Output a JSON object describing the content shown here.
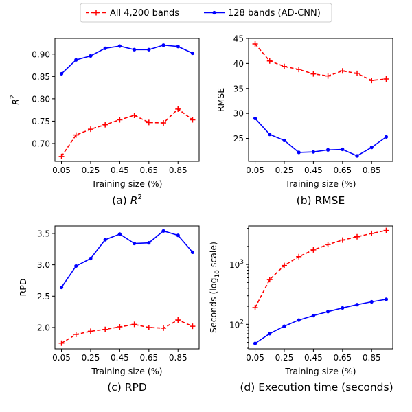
{
  "legend": {
    "items": [
      {
        "label": "All 4,200 bands",
        "color": "#ff0000",
        "style": "dashed",
        "marker": "plus"
      },
      {
        "label": "128 bands (AD-CNN)",
        "color": "#0000ff",
        "style": "solid",
        "marker": "dot"
      }
    ]
  },
  "chart_data": [
    {
      "type": "line",
      "caption": "(a) R²",
      "caption_main": "(a) R",
      "caption_sup": "2",
      "xlabel": "Training size (%)",
      "ylabel_main": "R",
      "ylabel_sup": "2",
      "x": [
        0.05,
        0.15,
        0.25,
        0.35,
        0.45,
        0.55,
        0.65,
        0.75,
        0.85,
        0.95
      ],
      "xticks": [
        0.05,
        0.25,
        0.45,
        0.65,
        0.85
      ],
      "xlim": [
        0.005,
        0.995
      ],
      "ylim": [
        0.66,
        0.935
      ],
      "yscale": "linear",
      "yticks": [
        0.7,
        0.75,
        0.8,
        0.85,
        0.9
      ],
      "yticklabels": [
        "0.70",
        "0.75",
        "0.80",
        "0.85",
        "0.90"
      ],
      "series": [
        {
          "name": "All 4,200 bands",
          "values": [
            0.671,
            0.719,
            0.732,
            0.742,
            0.753,
            0.763,
            0.747,
            0.746,
            0.777,
            0.753
          ]
        },
        {
          "name": "128 bands (AD-CNN)",
          "values": [
            0.856,
            0.887,
            0.896,
            0.913,
            0.918,
            0.91,
            0.91,
            0.92,
            0.917,
            0.902
          ]
        }
      ]
    },
    {
      "type": "line",
      "caption": "(b) RMSE",
      "caption_main": "(b) RMSE",
      "caption_sup": "",
      "xlabel": "Training size (%)",
      "ylabel_main": "RMSE",
      "ylabel_sup": "",
      "x": [
        0.05,
        0.15,
        0.25,
        0.35,
        0.45,
        0.55,
        0.65,
        0.75,
        0.85,
        0.95
      ],
      "xticks": [
        0.05,
        0.25,
        0.45,
        0.65,
        0.85
      ],
      "xlim": [
        0.005,
        0.995
      ],
      "ylim": [
        20.4,
        45.0
      ],
      "yscale": "linear",
      "yticks": [
        25,
        30,
        35,
        40,
        45
      ],
      "yticklabels": [
        "25",
        "30",
        "35",
        "40",
        "45"
      ],
      "series": [
        {
          "name": "All 4,200 bands",
          "values": [
            43.9,
            40.5,
            39.4,
            38.8,
            37.9,
            37.5,
            38.5,
            38.0,
            36.6,
            36.9
          ]
        },
        {
          "name": "128 bands (AD-CNN)",
          "values": [
            29.0,
            25.8,
            24.6,
            22.2,
            22.3,
            22.7,
            22.8,
            21.5,
            23.2,
            25.3
          ]
        }
      ]
    },
    {
      "type": "line",
      "caption": "(c) RPD",
      "caption_main": "(c) RPD",
      "caption_sup": "",
      "xlabel": "Training size (%)",
      "ylabel_main": "RPD",
      "ylabel_sup": "",
      "x": [
        0.05,
        0.15,
        0.25,
        0.35,
        0.45,
        0.55,
        0.65,
        0.75,
        0.85,
        0.95
      ],
      "xticks": [
        0.05,
        0.25,
        0.45,
        0.65,
        0.85
      ],
      "xlim": [
        0.005,
        0.995
      ],
      "ylim": [
        1.66,
        3.62
      ],
      "yscale": "linear",
      "yticks": [
        2.0,
        2.5,
        3.0,
        3.5
      ],
      "yticklabels": [
        "2.0",
        "2.5",
        "3.0",
        "3.5"
      ],
      "series": [
        {
          "name": "All 4,200 bands",
          "values": [
            1.75,
            1.89,
            1.94,
            1.97,
            2.01,
            2.05,
            2.0,
            1.99,
            2.12,
            2.02
          ]
        },
        {
          "name": "128 bands (AD-CNN)",
          "values": [
            2.64,
            2.98,
            3.1,
            3.4,
            3.49,
            3.34,
            3.35,
            3.54,
            3.47,
            3.2
          ]
        }
      ]
    },
    {
      "type": "line",
      "caption": "(d) Execution time (seconds)",
      "caption_main": "(d) Execution time (seconds)",
      "caption_sup": "",
      "xlabel": "Training size (%)",
      "ylabel_main": "Seconds (log",
      "ylabel_sub": "10",
      "ylabel_tail": " scale)",
      "x": [
        0.05,
        0.15,
        0.25,
        0.35,
        0.45,
        0.55,
        0.65,
        0.75,
        0.85,
        0.95
      ],
      "xticks": [
        0.05,
        0.25,
        0.45,
        0.65,
        0.85
      ],
      "xlim": [
        0.005,
        0.995
      ],
      "ylim": [
        39,
        4400
      ],
      "yscale": "log",
      "yticks": [
        100,
        1000
      ],
      "yticklabels_base": [
        "10",
        "10"
      ],
      "yticklabels_exp": [
        "2",
        "3"
      ],
      "series": [
        {
          "name": "All 4,200 bands",
          "values": [
            190,
            560,
            960,
            1350,
            1750,
            2150,
            2550,
            2900,
            3300,
            3700
          ]
        },
        {
          "name": "128 bands (AD-CNN)",
          "values": [
            48,
            70,
            93,
            118,
            140,
            163,
            188,
            213,
            238,
            262
          ]
        }
      ]
    }
  ]
}
